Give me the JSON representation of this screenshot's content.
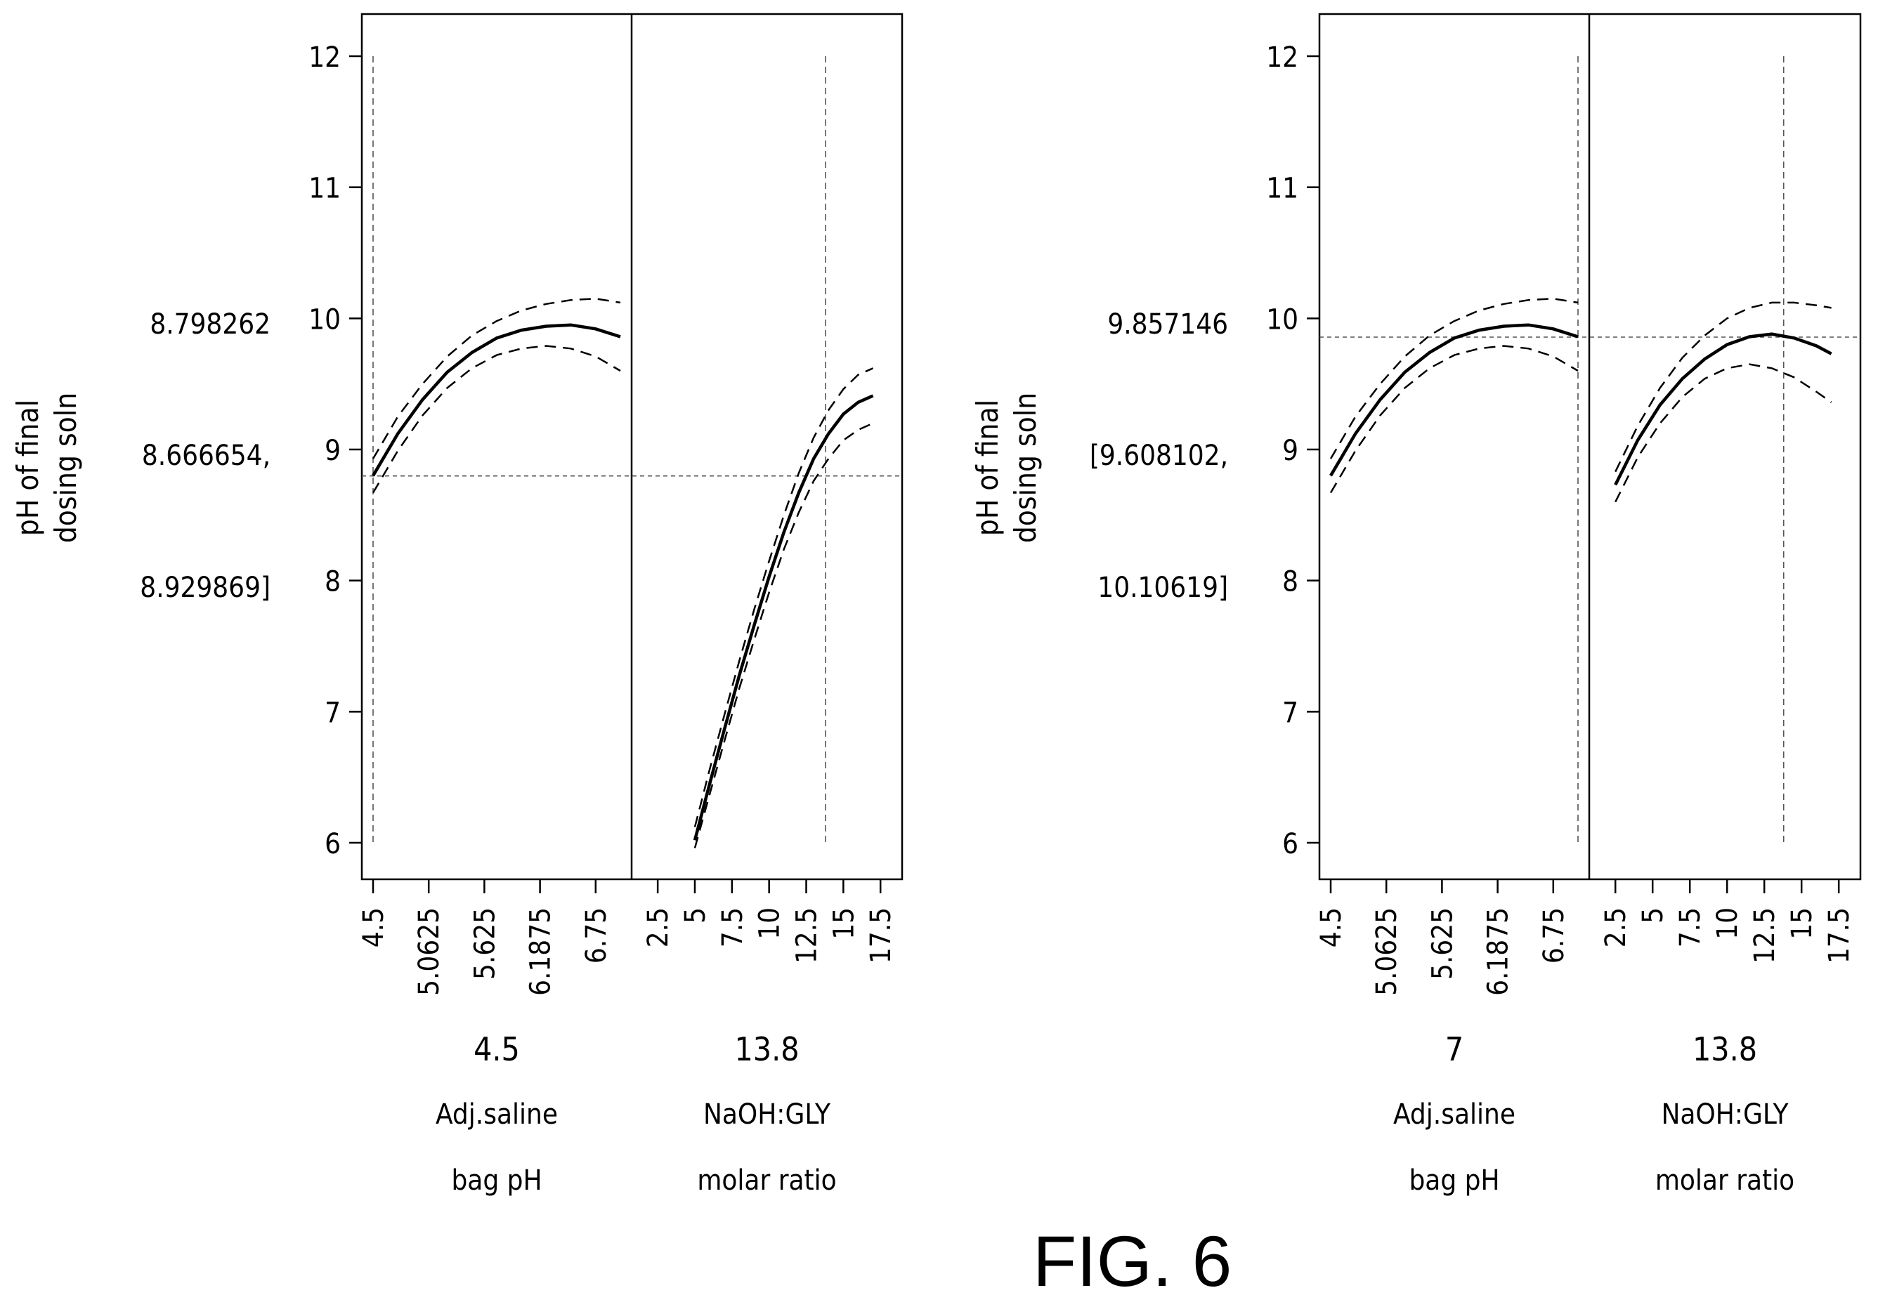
{
  "figure_label": "FIG. 6",
  "chart_data": [
    {
      "type": "line",
      "title": "",
      "ylabel": [
        "pH of final",
        "dosing soln"
      ],
      "prediction": {
        "value": "8.798262",
        "ci_low": "8.666654,",
        "ci_high": "8.929869]"
      },
      "ylim": [
        6,
        12
      ],
      "yticks": [
        "6",
        "7",
        "8",
        "9",
        "10",
        "11",
        "12"
      ],
      "reference_y": 8.798262,
      "factors": [
        {
          "name_line1": "Adj.saline",
          "name_line2": "bag pH",
          "current_label": "4.5",
          "current": 4.5,
          "xlim": [
            4.5,
            7.0
          ],
          "ticks": [
            4.5,
            5.0625,
            5.625,
            6.1875,
            6.75
          ],
          "tick_labels": [
            "4.5",
            "5.0625",
            "5.625",
            "6.1875",
            "6.75"
          ],
          "x": [
            4.5,
            4.75,
            5.0,
            5.25,
            5.5,
            5.75,
            6.0,
            6.25,
            6.5,
            6.75,
            7.0
          ],
          "y": [
            8.8,
            9.12,
            9.38,
            9.59,
            9.74,
            9.85,
            9.91,
            9.94,
            9.95,
            9.92,
            9.86
          ],
          "y_upper": [
            8.93,
            9.25,
            9.5,
            9.71,
            9.87,
            9.98,
            10.06,
            10.11,
            10.14,
            10.15,
            10.12
          ],
          "y_lower": [
            8.67,
            8.99,
            9.26,
            9.47,
            9.62,
            9.72,
            9.77,
            9.79,
            9.77,
            9.71,
            9.6
          ]
        },
        {
          "name_line1": "NaOH:GLY",
          "name_line2": "molar ratio",
          "current_label": "13.8",
          "current": 13.8,
          "xlim": [
            1.5,
            18.2
          ],
          "ticks": [
            2.5,
            5,
            7.5,
            10,
            12.5,
            15,
            17.5
          ],
          "tick_labels": [
            "2.5",
            "5",
            "7.5",
            "10",
            "12.5",
            "15",
            "17.5"
          ],
          "x": [
            5,
            6,
            7,
            8,
            9,
            10,
            11,
            12,
            13,
            14,
            15,
            16,
            17
          ],
          "y": [
            6.02,
            6.45,
            6.87,
            7.28,
            7.66,
            8.03,
            8.37,
            8.67,
            8.93,
            9.12,
            9.27,
            9.36,
            9.41
          ],
          "y_upper": [
            6.12,
            6.56,
            6.98,
            7.39,
            7.78,
            8.15,
            8.5,
            8.82,
            9.09,
            9.3,
            9.46,
            9.57,
            9.62
          ],
          "y_lower": [
            5.96,
            6.37,
            6.78,
            7.18,
            7.55,
            7.91,
            8.24,
            8.52,
            8.76,
            8.93,
            9.07,
            9.15,
            9.2
          ]
        }
      ]
    },
    {
      "type": "line",
      "title": "",
      "ylabel": [
        "pH of final",
        "dosing soln"
      ],
      "prediction": {
        "value": "9.857146",
        "ci_low": "[9.608102,",
        "ci_high": "10.10619]"
      },
      "ylim": [
        6,
        12
      ],
      "yticks": [
        "6",
        "7",
        "8",
        "9",
        "10",
        "11",
        "12"
      ],
      "reference_y": 9.857146,
      "factors": [
        {
          "name_line1": "Adj.saline",
          "name_line2": "bag pH",
          "current_label": "7",
          "current": 7.0,
          "xlim": [
            4.5,
            7.0
          ],
          "ticks": [
            4.5,
            5.0625,
            5.625,
            6.1875,
            6.75
          ],
          "tick_labels": [
            "4.5",
            "5.0625",
            "5.625",
            "6.1875",
            "6.75"
          ],
          "x": [
            4.5,
            4.75,
            5.0,
            5.25,
            5.5,
            5.75,
            6.0,
            6.25,
            6.5,
            6.75,
            7.0
          ],
          "y": [
            8.8,
            9.12,
            9.38,
            9.59,
            9.74,
            9.85,
            9.91,
            9.94,
            9.95,
            9.92,
            9.86
          ],
          "y_upper": [
            8.93,
            9.25,
            9.5,
            9.71,
            9.87,
            9.98,
            10.06,
            10.11,
            10.14,
            10.15,
            10.12
          ],
          "y_lower": [
            8.67,
            8.99,
            9.26,
            9.47,
            9.62,
            9.72,
            9.77,
            9.79,
            9.77,
            9.71,
            9.6
          ]
        },
        {
          "name_line1": "NaOH:GLY",
          "name_line2": "molar ratio",
          "current_label": "13.8",
          "current": 13.8,
          "xlim": [
            1.5,
            18.2
          ],
          "ticks": [
            2.5,
            5,
            7.5,
            10,
            12.5,
            15,
            17.5
          ],
          "tick_labels": [
            "2.5",
            "5",
            "7.5",
            "10",
            "12.5",
            "15",
            "17.5"
          ],
          "x": [
            2.5,
            4,
            5.5,
            7,
            8.5,
            10,
            11.5,
            13,
            14.5,
            16,
            17
          ],
          "y": [
            8.73,
            9.07,
            9.34,
            9.54,
            9.69,
            9.8,
            9.86,
            9.88,
            9.85,
            9.79,
            9.73
          ],
          "y_upper": [
            8.83,
            9.18,
            9.47,
            9.7,
            9.87,
            10.0,
            10.08,
            10.12,
            10.12,
            10.1,
            10.08
          ],
          "y_lower": [
            8.6,
            8.94,
            9.2,
            9.4,
            9.54,
            9.62,
            9.65,
            9.62,
            9.55,
            9.44,
            9.36
          ]
        }
      ]
    }
  ]
}
